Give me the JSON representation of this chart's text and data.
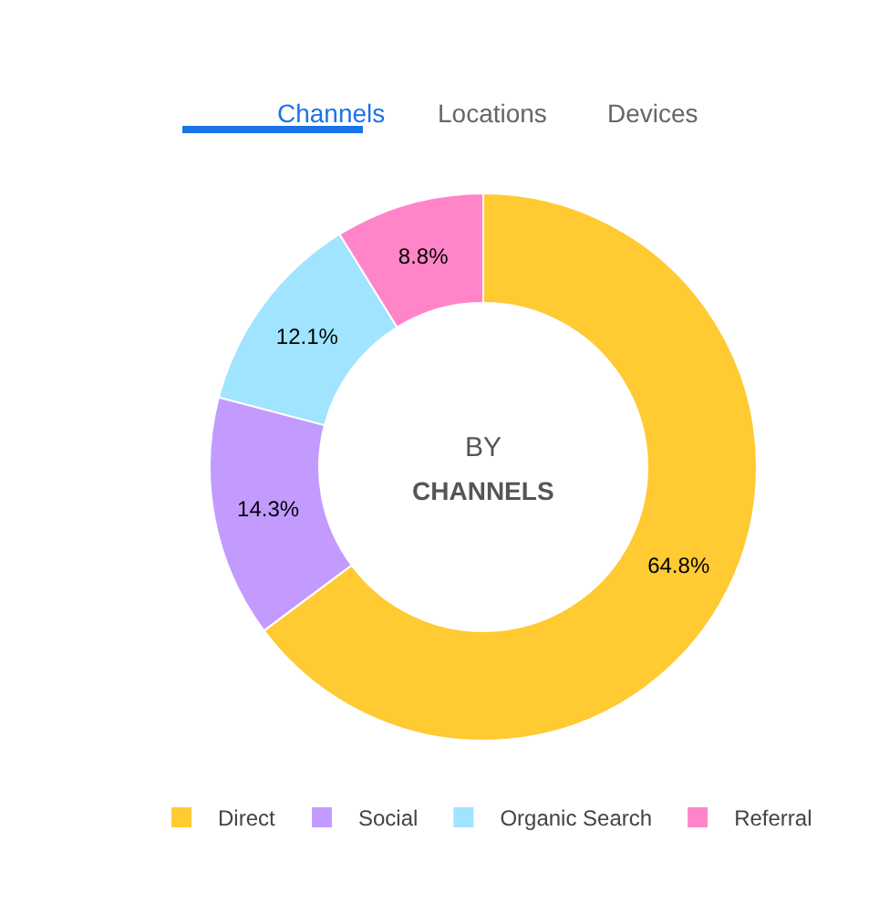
{
  "chart_data": {
    "type": "donut",
    "categories": [
      "Direct",
      "Social",
      "Organic Search",
      "Referral"
    ],
    "values": [
      64.8,
      14.3,
      12.1,
      8.8
    ],
    "colors": [
      "#ffca32",
      "#c39bff",
      "#a0e4ff",
      "#ff85c8"
    ],
    "value_labels": [
      "64.8%",
      "14.3%",
      "12.1%",
      "8.8%"
    ],
    "legend": "bottom",
    "annotations": [
      "Channels",
      "Locations",
      "Devices",
      "BY",
      "CHANNELS"
    ]
  }
}
